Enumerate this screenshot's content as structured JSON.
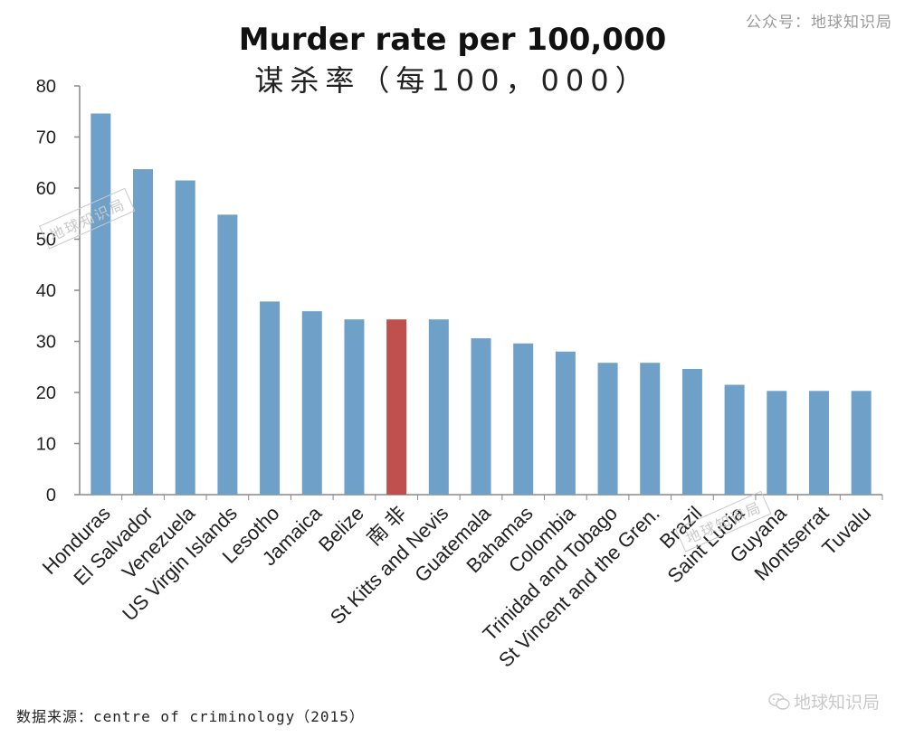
{
  "watermark_top": "公众号：地球知识局",
  "title_en": "Murder rate per 100,000",
  "title_zh": "谋杀率（每100，000）",
  "source": "数据来源：centre of criminology（2015）",
  "wechat_mark": "地球知识局",
  "stamp_text": "地球知识局",
  "colors": {
    "bar": "#6fa0c8",
    "highlight": "#c0504d",
    "axis": "#888888",
    "text": "#222222"
  },
  "chart_data": {
    "type": "bar",
    "title": "Murder rate per 100,000",
    "subtitle": "谋杀率（每100，000）",
    "xlabel": "",
    "ylabel": "",
    "ylim": [
      0,
      80
    ],
    "yticks": [
      0,
      10,
      20,
      30,
      40,
      50,
      60,
      70,
      80
    ],
    "grid": false,
    "categories": [
      "Honduras",
      "El Salvador",
      "Venezuela",
      "US Virgin Islands",
      "Lesotho",
      "Jamaica",
      "Belize",
      "南 非",
      "St Kitts and Nevis",
      "Guatemala",
      "Bahamas",
      "Colombia",
      "Trinidad and Tobago",
      "St Vincent and the Gren.",
      "Brazil",
      "Saint Lucia",
      "Guyana",
      "Montserrat",
      "Tuvalu"
    ],
    "values": [
      74.6,
      63.7,
      61.5,
      54.8,
      37.8,
      35.9,
      34.3,
      34.3,
      34.3,
      30.6,
      29.6,
      28.0,
      25.8,
      25.8,
      24.6,
      21.5,
      20.3,
      20.3,
      20.3
    ],
    "highlight_category": "南 非"
  }
}
